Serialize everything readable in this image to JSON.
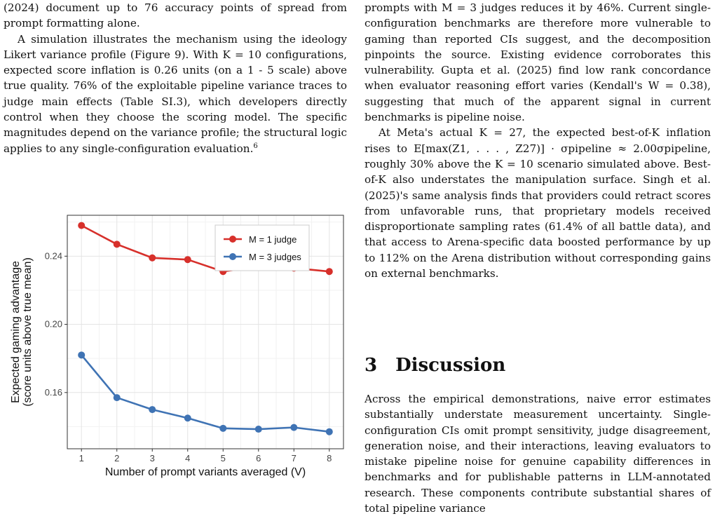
{
  "left_column": {
    "line1": "(2024) document up to 76 accuracy points of spread from prompt formatting alone.",
    "para2": "A simulation illustrates the mechanism using the ideology Likert variance profile (Figure 9). With K = 10 configurations, expected score inflation is 0.26 units (on a 1 - 5 scale) above true quality. 76% of the exploitable pipeline variance traces to judge main effects (Table SI.3), which developers directly control when they choose the scoring model. The specific magnitudes depend on the variance profile; the structural logic applies to any single-configuration evaluation.",
    "footnote_mark": "6"
  },
  "right_column": {
    "para1": "prompts with M = 3 judges reduces it by 46%. Current single-configuration benchmarks are therefore more vulnerable to gaming than reported CIs suggest, and the decomposition pinpoints the source. Existing evidence corroborates this vulnerability. Gupta et al. (2025) find low rank concordance when evaluator reasoning effort varies (Kendall's W = 0.38), suggesting that much of the apparent signal in current benchmarks is pipeline noise.",
    "para2": "At Meta's actual K = 27, the expected best-of-K inflation rises to E[max(Z1, . . . , Z27)] · σpipeline ≈ 2.00σpipeline, roughly 30% above the K = 10 scenario simulated above. Best-of-K also understates the manipulation surface. Singh et al. (2025)'s same analysis finds that providers could retract scores from unfavorable runs, that proprietary models received disproportionate sampling rates (61.4% of all battle data), and that access to Arena-specific data boosted performance by up to 112% on the Arena distribution without corresponding gains on external benchmarks."
  },
  "discussion": {
    "number": "3",
    "title": "Discussion",
    "body": "Across the empirical demonstrations, naive error estimates substantially understate measurement uncertainty. Single-configuration CIs omit prompt sensitivity, judge disagreement, generation noise, and their interactions, leaving evaluators to mistake pipeline noise for genuine capability differences in benchmarks and for publishable patterns in LLM-annotated research. These components contribute substantial shares of total pipeline variance"
  },
  "chart_data": {
    "type": "line",
    "xlabel": "Number of prompt variants averaged (V)",
    "ylabel": [
      "Expected gaming advantage",
      "(score units above true mean)"
    ],
    "x": [
      1,
      2,
      3,
      4,
      5,
      6,
      7,
      8
    ],
    "xlim": [
      0.6,
      8.4
    ],
    "ylim": [
      0.127,
      0.264
    ],
    "yticks": [
      0.16,
      0.2,
      0.24
    ],
    "ytick_labels": [
      "0.16",
      "0.20",
      "0.24"
    ],
    "grid": true,
    "legend_position": "top-right",
    "series": [
      {
        "name": "M = 1 judge",
        "color": "#d7302b",
        "values": [
          0.258,
          0.247,
          0.239,
          0.238,
          0.231,
          0.234,
          0.233,
          0.231
        ]
      },
      {
        "name": "M = 3 judges",
        "color": "#3f73b4",
        "values": [
          0.182,
          0.157,
          0.15,
          0.145,
          0.139,
          0.1385,
          0.1395,
          0.137
        ]
      }
    ]
  }
}
